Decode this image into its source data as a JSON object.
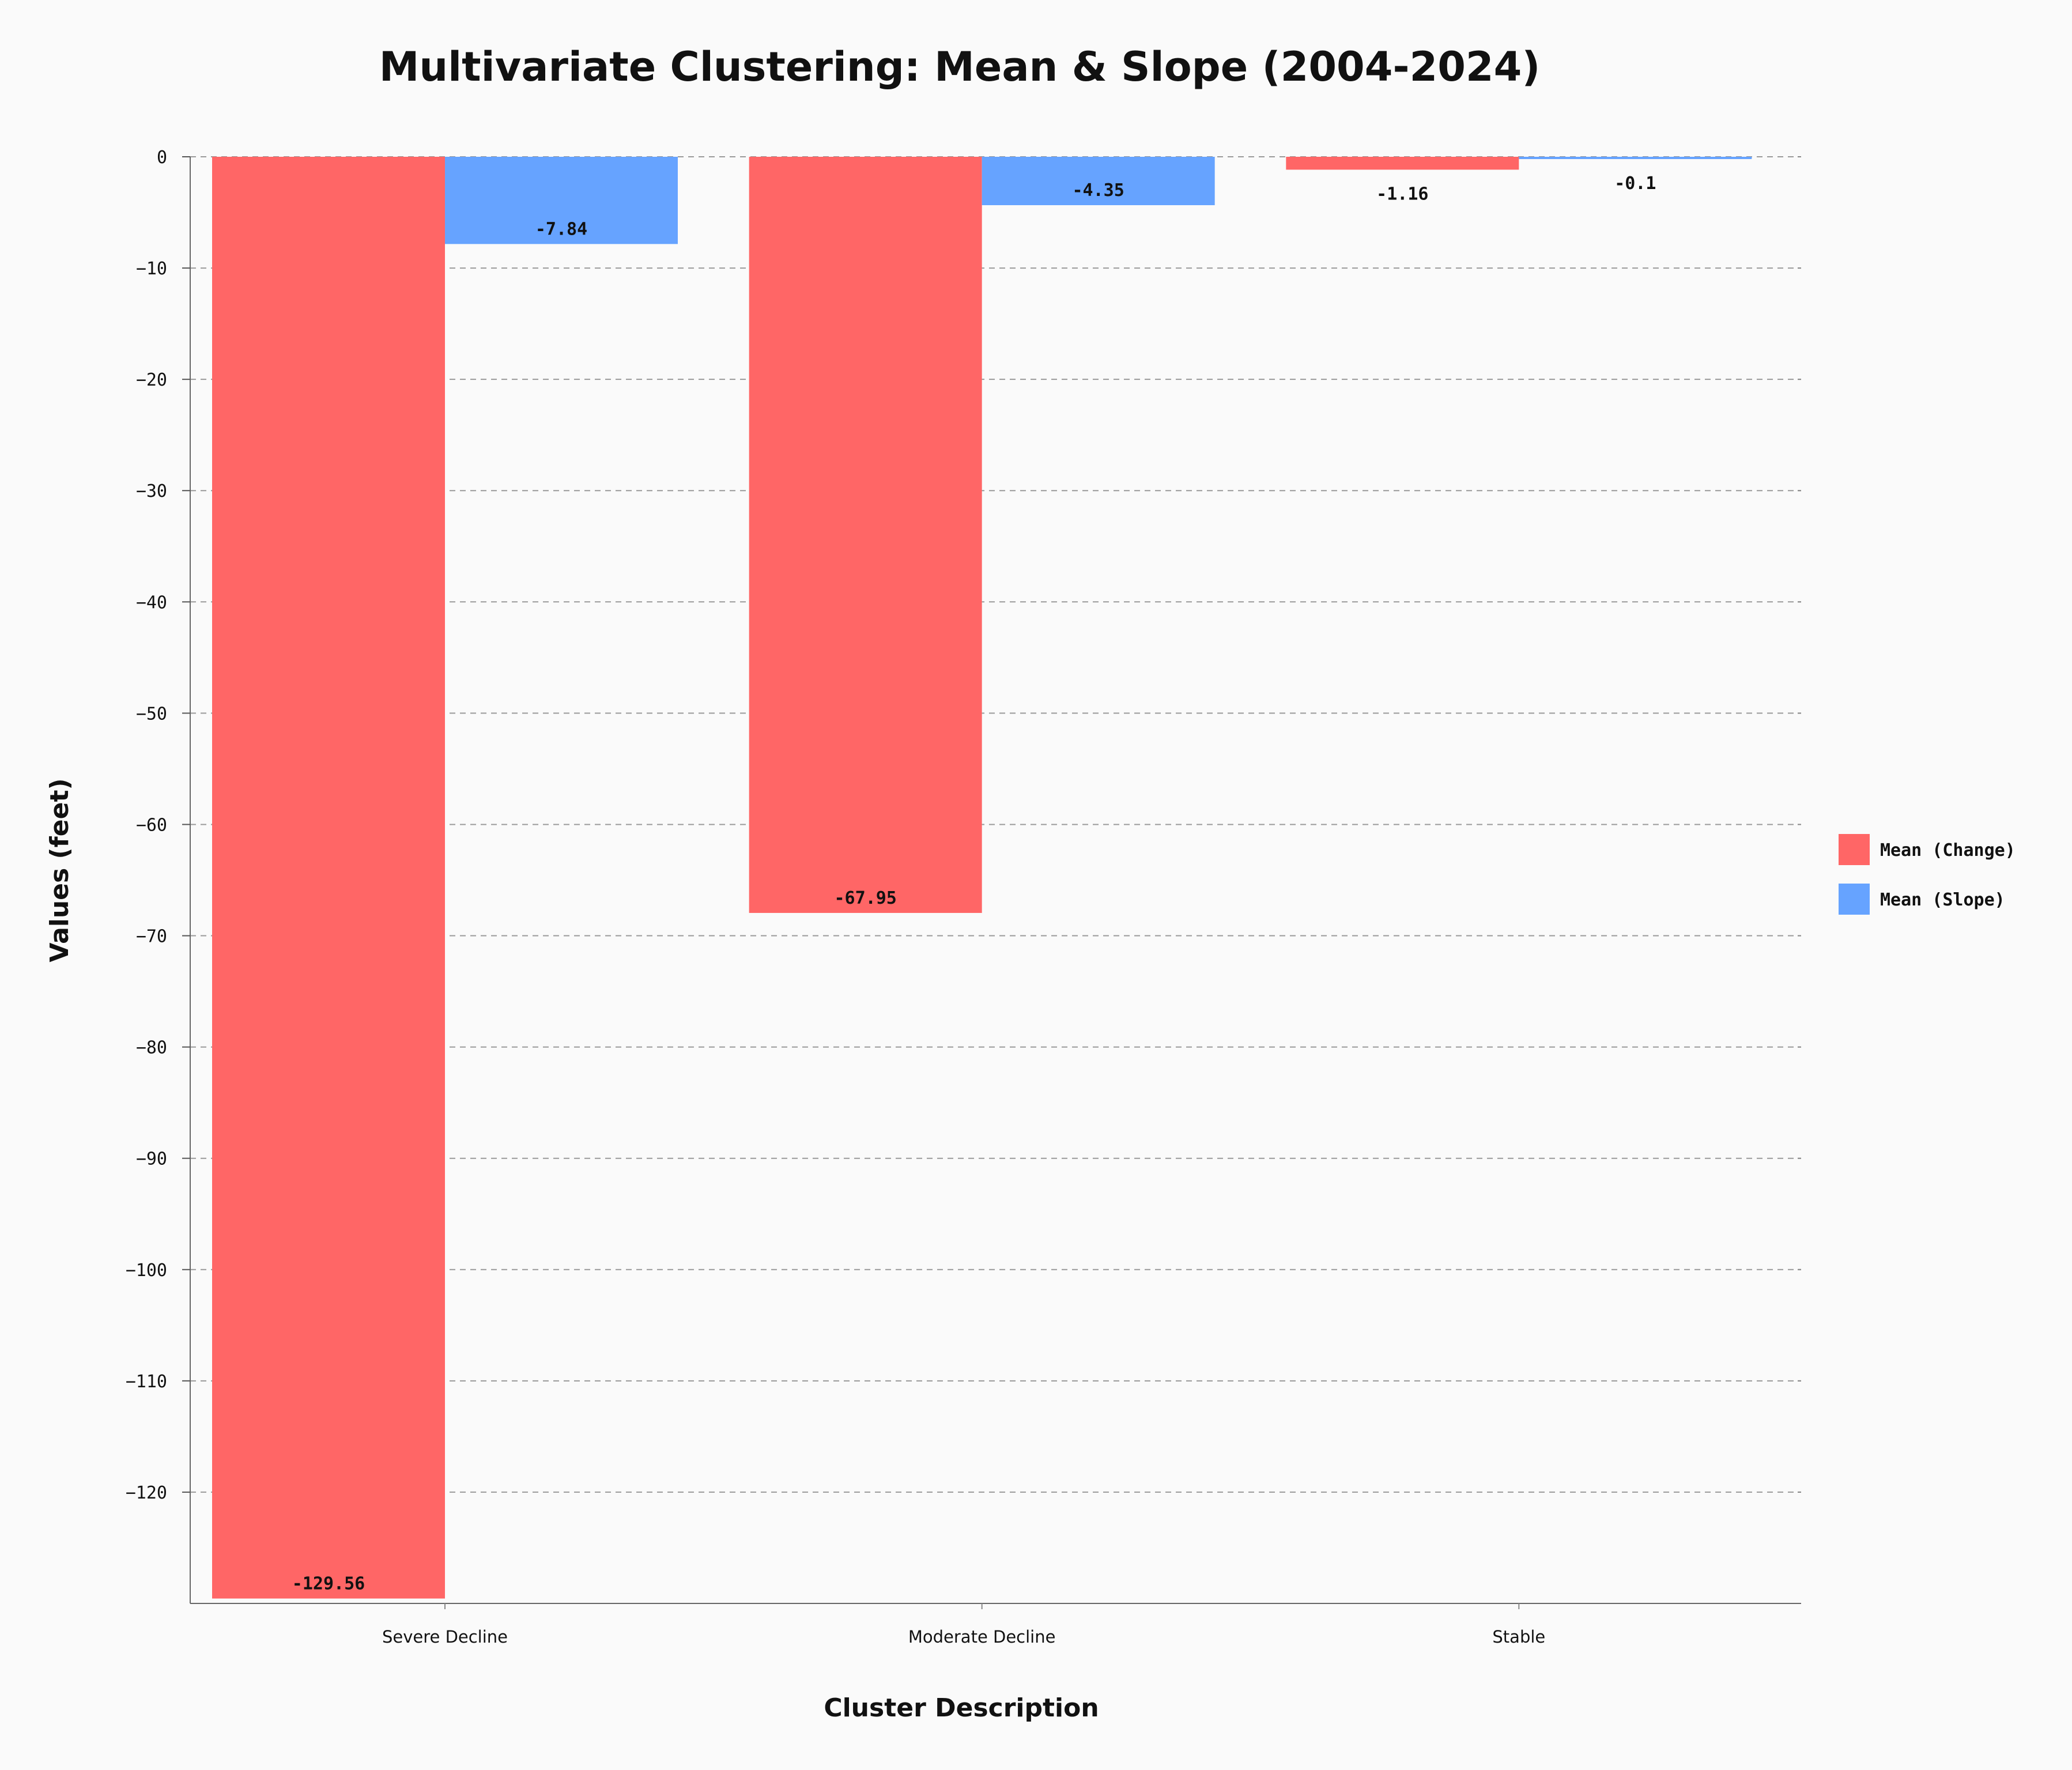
{
  "chart_data": {
    "type": "bar",
    "title": "Multivariate Clustering: Mean & Slope (2004-2024)",
    "xlabel": "Cluster Description",
    "ylabel": "Values (feet)",
    "categories": [
      "Severe Decline",
      "Moderate Decline",
      "Stable"
    ],
    "series": [
      {
        "name": "Mean (Change)",
        "color": "#ff6666",
        "values": [
          -129.56,
          -67.95,
          -1.16
        ],
        "labels": [
          "-129.56",
          "-67.95",
          "-1.16"
        ]
      },
      {
        "name": "Mean (Slope)",
        "color": "#66a3ff",
        "values": [
          -7.84,
          -4.35,
          -0.1
        ],
        "labels": [
          "-7.84",
          "-4.35",
          "-0.1"
        ]
      }
    ],
    "ylim": [
      -130,
      0
    ],
    "yticks": [
      0,
      -10,
      -20,
      -30,
      -40,
      -50,
      -60,
      -70,
      -80,
      -90,
      -100,
      -110,
      -120
    ],
    "ytick_labels": [
      "0",
      "−10",
      "−20",
      "−30",
      "−40",
      "−50",
      "−60",
      "−70",
      "−80",
      "−90",
      "−100",
      "−110",
      "−120"
    ],
    "grid": "horizontal dashed",
    "legend_position": "right"
  }
}
